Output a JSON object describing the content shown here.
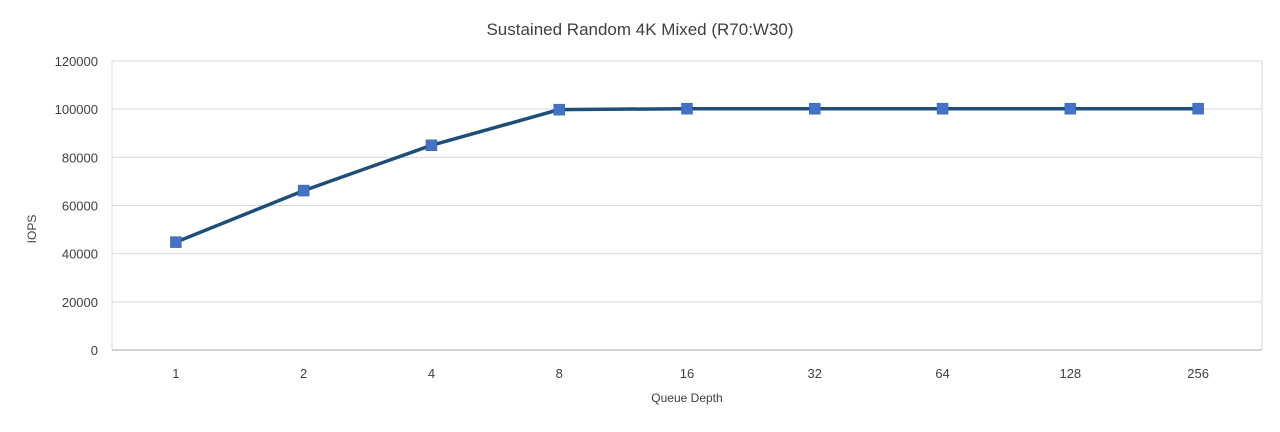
{
  "chart_data": {
    "type": "line",
    "title": "Sustained Random 4K Mixed (R70:W30)",
    "xlabel": "Queue Depth",
    "ylabel": "IOPS",
    "categories": [
      "1",
      "2",
      "4",
      "8",
      "16",
      "32",
      "64",
      "128",
      "256"
    ],
    "series": [
      {
        "values": [
          44800,
          66200,
          85000,
          99800,
          100200,
          100200,
          100200,
          100200,
          100200
        ]
      }
    ],
    "ylim": [
      0,
      120000
    ],
    "yticks": [
      "0",
      "20000",
      "40000",
      "60000",
      "80000",
      "100000",
      "120000"
    ],
    "grid": true,
    "legend": "none"
  },
  "colors": {
    "line": "#1f4e79",
    "marker": "#4472c4",
    "grid": "#d9d9d9",
    "axis": "#a6a6a6",
    "text": "#404040"
  }
}
